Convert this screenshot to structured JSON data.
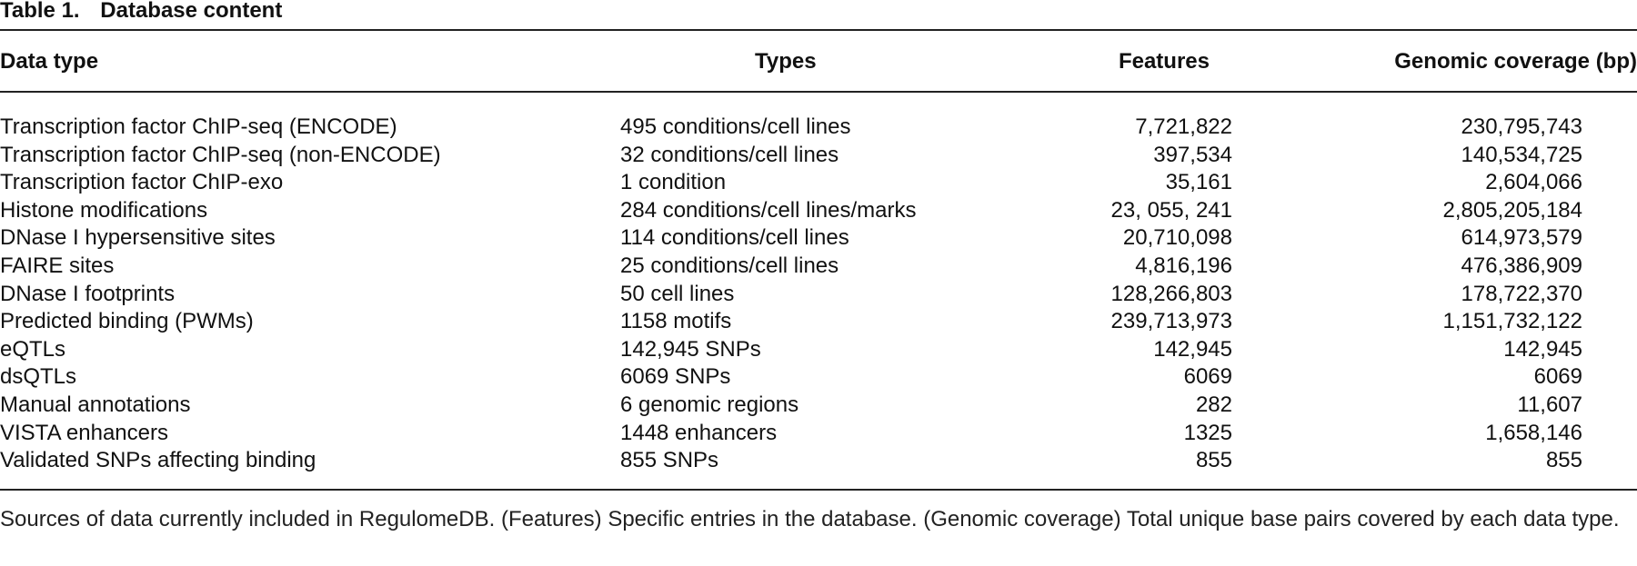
{
  "caption": {
    "label": "Table 1.",
    "title": "Database content"
  },
  "headers": {
    "data_type": "Data type",
    "types": "Types",
    "features": "Features",
    "coverage": "Genomic coverage (bp)"
  },
  "rows": [
    {
      "data_type": "Transcription factor ChIP-seq (ENCODE)",
      "types": "495 conditions/cell lines",
      "features": "7,721,822",
      "coverage": "230,795,743"
    },
    {
      "data_type": "Transcription factor ChIP-seq (non-ENCODE)",
      "types": "32 conditions/cell lines",
      "features": "397,534",
      "coverage": "140,534,725"
    },
    {
      "data_type": "Transcription factor ChIP-exo",
      "types": "1 condition",
      "features": "35,161",
      "coverage": "2,604,066"
    },
    {
      "data_type": "Histone modifications",
      "types": "284 conditions/cell lines/marks",
      "features": "23, 055, 241",
      "coverage": "2,805,205,184"
    },
    {
      "data_type": "DNase I hypersensitive sites",
      "types": "114 conditions/cell lines",
      "features": "20,710,098",
      "coverage": "614,973,579"
    },
    {
      "data_type": "FAIRE sites",
      "types": "25 conditions/cell lines",
      "features": "4,816,196",
      "coverage": "476,386,909"
    },
    {
      "data_type": "DNase I footprints",
      "types": "50 cell lines",
      "features": "128,266,803",
      "coverage": "178,722,370"
    },
    {
      "data_type": "Predicted binding (PWMs)",
      "types": "1158 motifs",
      "features": "239,713,973",
      "coverage": "1,151,732,122"
    },
    {
      "data_type": "eQTLs",
      "types": "142,945 SNPs",
      "features": "142,945",
      "coverage": "142,945"
    },
    {
      "data_type": "dsQTLs",
      "types": "6069 SNPs",
      "features": "6069",
      "coverage": "6069"
    },
    {
      "data_type": "Manual annotations",
      "types": "6 genomic regions",
      "features": "282",
      "coverage": "11,607"
    },
    {
      "data_type": "VISTA enhancers",
      "types": "1448 enhancers",
      "features": "1325",
      "coverage": "1,658,146"
    },
    {
      "data_type": "Validated SNPs affecting binding",
      "types": "855 SNPs",
      "features": "855",
      "coverage": "855"
    }
  ],
  "footnote": "Sources of data currently included in RegulomeDB. (Features) Specific entries in the database. (Genomic coverage) Total unique base pairs covered by each data type."
}
